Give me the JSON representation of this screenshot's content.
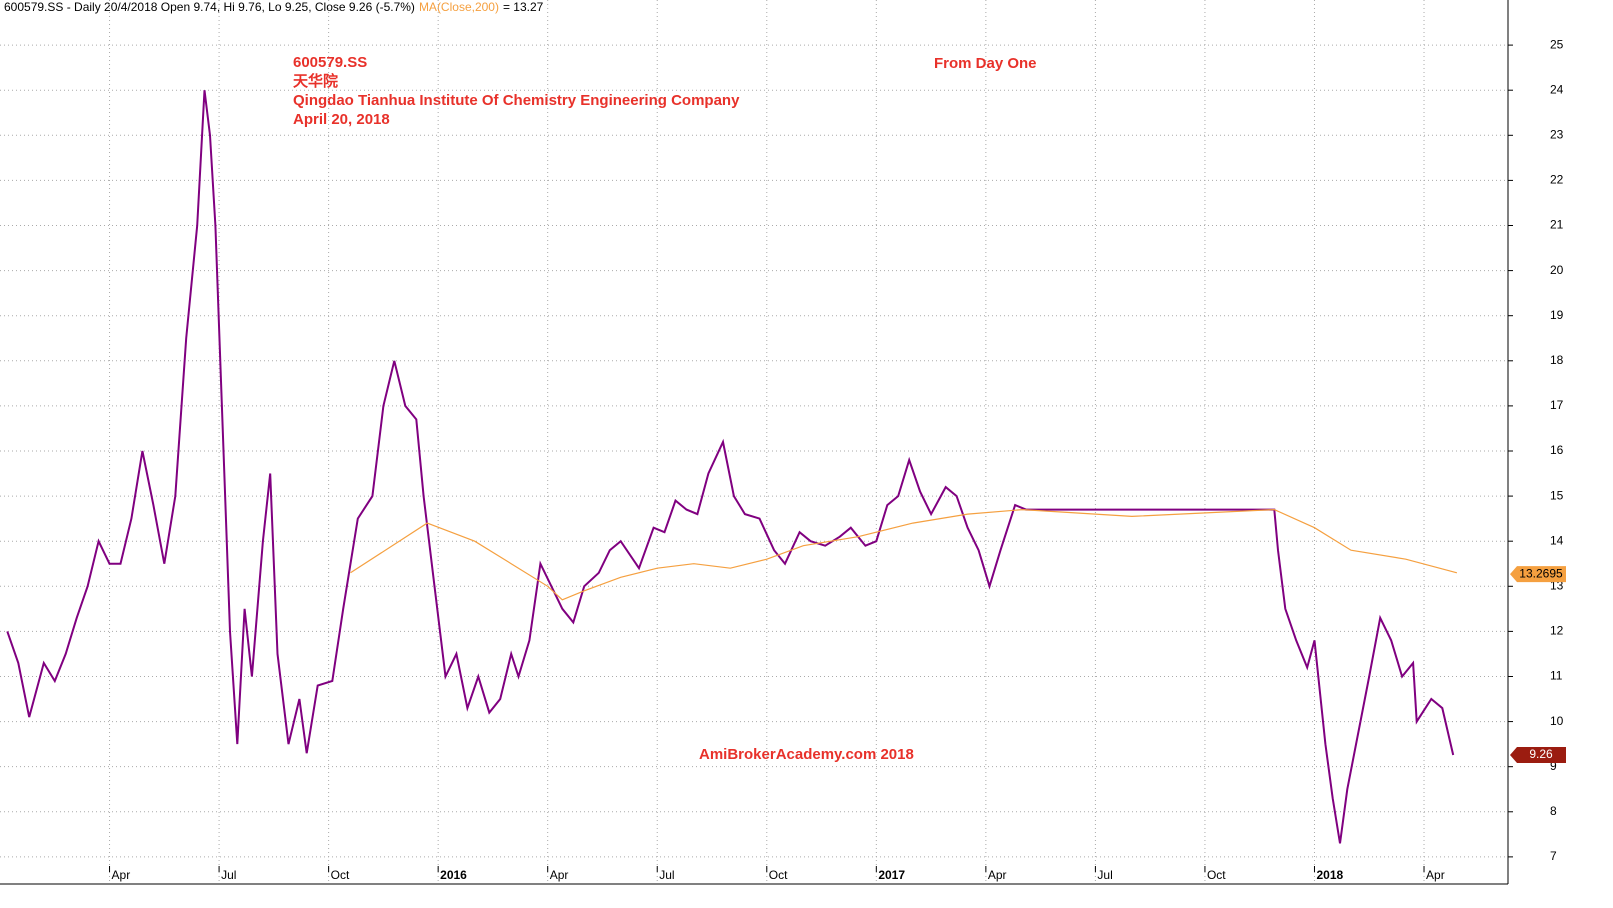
{
  "chart_data": {
    "type": "line",
    "header": "600579.SS - Daily 20/4/2018 Open 9.74, Hi 9.76, Lo 9.25, Close 9.26 (-5.7%)",
    "ma_readout": "= 13.27",
    "annotations": [
      "600579.SS",
      "天华院",
      "Qingdao Tianhua Institute Of Chemistry Engineering Company",
      "April 20, 2018",
      "From Day One",
      "AmiBrokerAcademy.com  2018"
    ],
    "xlim": [
      0,
      41.3
    ],
    "xticks": [
      {
        "value": 3,
        "label": "Apr"
      },
      {
        "value": 6,
        "label": "Jul"
      },
      {
        "value": 9,
        "label": "Oct"
      },
      {
        "value": 12,
        "label": "2016"
      },
      {
        "value": 15,
        "label": "Apr"
      },
      {
        "value": 18,
        "label": "Jul"
      },
      {
        "value": 21,
        "label": "Oct"
      },
      {
        "value": 24,
        "label": "2017"
      },
      {
        "value": 27,
        "label": "Apr"
      },
      {
        "value": 30,
        "label": "Jul"
      },
      {
        "value": 33,
        "label": "Oct"
      },
      {
        "value": 36,
        "label": "2018"
      },
      {
        "value": 39,
        "label": "Apr"
      }
    ],
    "ylim": [
      6.82,
      26.0
    ],
    "yticks": [
      7,
      8,
      9,
      10,
      11,
      12,
      13,
      14,
      15,
      16,
      17,
      18,
      19,
      20,
      21,
      22,
      23,
      24,
      25
    ],
    "grid": true,
    "series": [
      {
        "name": "600579.SS",
        "color": "#800080",
        "end_value": 9.26,
        "badge_color": "#9b1c10",
        "x": [
          0.2,
          0.5,
          0.8,
          1.2,
          1.5,
          1.8,
          2.1,
          2.4,
          2.7,
          3.0,
          3.3,
          3.6,
          3.9,
          4.2,
          4.5,
          4.8,
          5.1,
          5.4,
          5.6,
          5.75,
          5.9,
          6.1,
          6.3,
          6.5,
          6.7,
          6.9,
          7.2,
          7.4,
          7.6,
          7.9,
          8.2,
          8.4,
          8.7,
          9.1,
          9.4,
          9.8,
          10.2,
          10.5,
          10.8,
          11.1,
          11.4,
          11.6,
          11.9,
          12.2,
          12.5,
          12.8,
          13.1,
          13.4,
          13.7,
          14.0,
          14.2,
          14.5,
          14.8,
          15.1,
          15.4,
          15.7,
          16.0,
          16.4,
          16.7,
          17.0,
          17.5,
          17.9,
          18.2,
          18.5,
          18.8,
          19.1,
          19.4,
          19.8,
          20.1,
          20.4,
          20.8,
          21.2,
          21.5,
          21.9,
          22.2,
          22.6,
          23.0,
          23.3,
          23.7,
          24.0,
          24.3,
          24.6,
          24.9,
          25.2,
          25.5,
          25.9,
          26.2,
          26.5,
          26.8,
          27.1,
          27.4,
          27.8,
          28.1,
          34.9,
          35.0,
          35.2,
          35.5,
          35.8,
          36.0,
          36.3,
          36.5,
          36.7,
          36.9,
          37.5,
          37.8,
          38.1,
          38.4,
          38.7,
          38.8,
          39.2,
          39.5,
          39.8
        ],
        "values": [
          12,
          11.3,
          10.1,
          11.3,
          10.9,
          11.5,
          12.3,
          13.0,
          14.0,
          13.5,
          13.5,
          14.5,
          16.0,
          14.8,
          13.5,
          15.0,
          18.5,
          21.0,
          24.0,
          23.0,
          21.0,
          16.5,
          12.0,
          9.5,
          12.5,
          11.0,
          14.0,
          15.5,
          11.5,
          9.5,
          10.5,
          9.3,
          10.8,
          10.9,
          12.5,
          14.5,
          15.0,
          17.0,
          18.0,
          17.0,
          16.7,
          15.0,
          13.0,
          11.0,
          11.5,
          10.3,
          11.0,
          10.2,
          10.5,
          11.5,
          11.0,
          11.8,
          13.5,
          13.0,
          12.5,
          12.2,
          13.0,
          13.3,
          13.8,
          14.0,
          13.4,
          14.3,
          14.2,
          14.9,
          14.7,
          14.6,
          15.5,
          16.2,
          15.0,
          14.6,
          14.5,
          13.8,
          13.5,
          14.2,
          14.0,
          13.9,
          14.1,
          14.3,
          13.9,
          14.0,
          14.8,
          15.0,
          15.8,
          15.1,
          14.6,
          15.2,
          15.0,
          14.3,
          13.8,
          13.0,
          13.8,
          14.8,
          14.7,
          14.7,
          13.8,
          12.5,
          11.8,
          11.2,
          11.8,
          9.5,
          8.3,
          7.3,
          8.5,
          11.0,
          12.3,
          11.8,
          11.0,
          11.3,
          10.0,
          10.5,
          10.3,
          9.26
        ]
      },
      {
        "name": "MA(Close,200)",
        "color": "#f5a040",
        "end_value": 13.2695,
        "badge_color": "#f5a040",
        "x": [
          9.6,
          11.7,
          13.0,
          14.0,
          15.0,
          15.4,
          16.0,
          17.0,
          18.0,
          19.0,
          20.0,
          21.0,
          22.0,
          23.5,
          25.0,
          26.5,
          28.0,
          31.0,
          34.9,
          36.0,
          37.0,
          38.5,
          39.9
        ],
        "values": [
          13.3,
          14.4,
          14.0,
          13.5,
          13.0,
          12.7,
          12.9,
          13.2,
          13.4,
          13.5,
          13.4,
          13.6,
          13.9,
          14.1,
          14.4,
          14.6,
          14.7,
          14.55,
          14.7,
          14.3,
          13.8,
          13.6,
          13.3
        ]
      }
    ]
  }
}
